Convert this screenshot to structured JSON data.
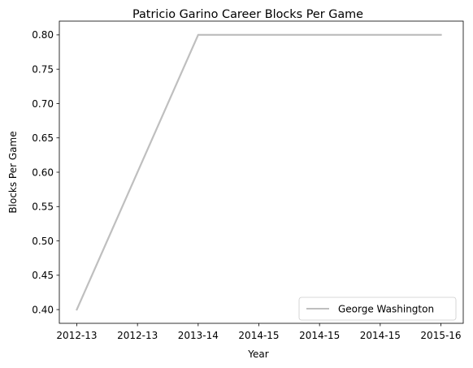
{
  "chart_data": {
    "type": "line",
    "title": "Patricio Garino Career Blocks Per Game",
    "xlabel": "Year",
    "ylabel": "Blocks Per Game",
    "x_tick_labels": [
      "2012-13",
      "2012-13",
      "2013-14",
      "2014-15",
      "2014-15",
      "2014-15",
      "2015-16"
    ],
    "y_tick_labels": [
      "0.40",
      "0.45",
      "0.50",
      "0.55",
      "0.60",
      "0.65",
      "0.70",
      "0.75",
      "0.80"
    ],
    "y_ticks": [
      0.4,
      0.45,
      0.5,
      0.55,
      0.6,
      0.65,
      0.7,
      0.75,
      0.8
    ],
    "ylim": [
      0.38,
      0.82
    ],
    "series": [
      {
        "name": "George Washington",
        "color": "#bfbfbf",
        "x": [
          "2012-13",
          "2013-14",
          "2014-15",
          "2015-16"
        ],
        "values": [
          0.4,
          0.8,
          0.8,
          0.8
        ]
      }
    ],
    "legend_position": "lower-right",
    "grid": false
  }
}
